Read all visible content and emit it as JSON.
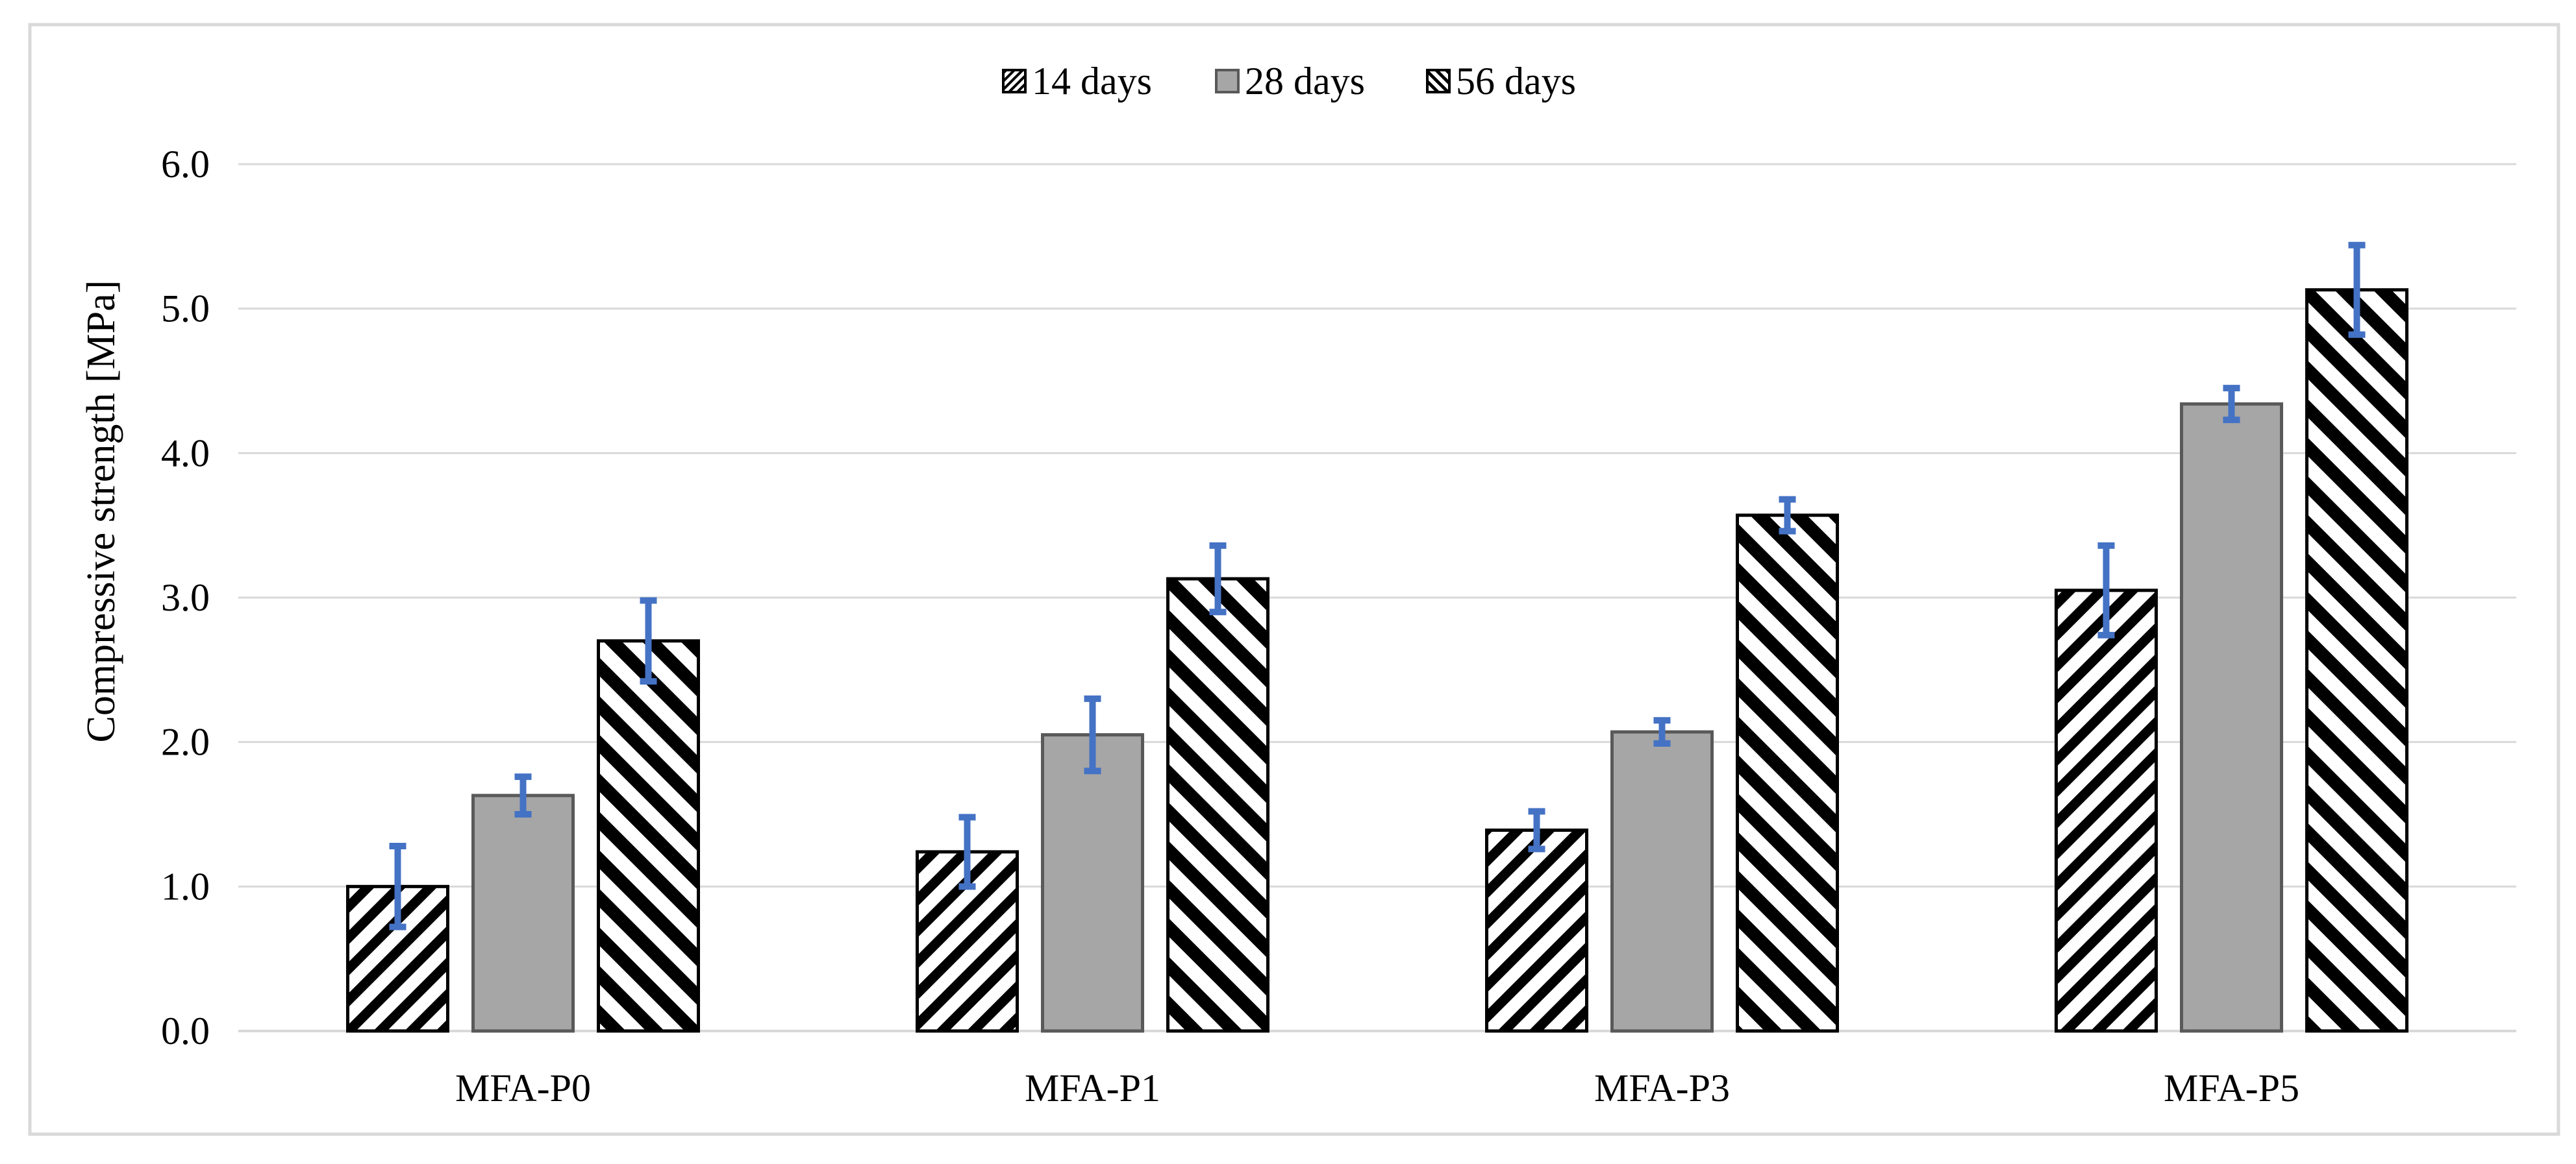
{
  "chart_data": {
    "type": "bar",
    "title": "",
    "xlabel": "",
    "ylabel": "Compressive strength [MPa]",
    "ylim": [
      0,
      6
    ],
    "yticks": [
      0,
      1,
      2,
      3,
      4,
      5,
      6
    ],
    "ytick_labels": [
      "0.0",
      "1.0",
      "2.0",
      "3.0",
      "4.0",
      "5.0",
      "6.0"
    ],
    "grid": true,
    "legend_position": "top-center",
    "categories": [
      "MFA-P0",
      "MFA-P1",
      "MFA-P3",
      "MFA-P5"
    ],
    "series": [
      {
        "name": "14 days",
        "pattern": "fine-diagonal-hatch",
        "values": [
          1.0,
          1.24,
          1.39,
          3.05
        ],
        "errors": [
          0.28,
          0.24,
          0.13,
          0.31
        ]
      },
      {
        "name": "28 days",
        "pattern": "solid-gray",
        "values": [
          1.63,
          2.05,
          2.07,
          4.34
        ],
        "errors": [
          0.13,
          0.25,
          0.08,
          0.11
        ]
      },
      {
        "name": "56 days",
        "pattern": "wide-diagonal-hatch",
        "values": [
          2.7,
          3.13,
          3.57,
          5.13
        ],
        "errors": [
          0.28,
          0.23,
          0.11,
          0.31
        ]
      }
    ]
  },
  "colors": {
    "bar_outline": "#000000",
    "gray_fill": "#a6a6a6",
    "gray_outline": "#595959",
    "error_bar": "#4472c4",
    "grid": "#d9d9d9",
    "frame": "#d9d9d9",
    "text": "#000000"
  }
}
